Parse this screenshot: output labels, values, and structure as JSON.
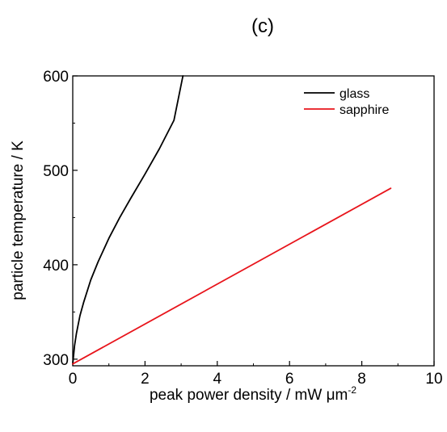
{
  "chart_data": {
    "type": "line",
    "panel_label": "(c)",
    "xlabel_text": "peak power density / mW ",
    "xlabel_unit": "μm",
    "xlabel_exponent": "-2",
    "ylabel": "particle temperature / K",
    "xlim": [
      0,
      10
    ],
    "ylim": [
      293,
      600
    ],
    "xticks": [
      0,
      2,
      4,
      6,
      8,
      10
    ],
    "yticks": [
      300,
      400,
      500,
      600
    ],
    "legend_position": "top-right",
    "grid": false,
    "series": [
      {
        "name": "glass",
        "color": "#000000",
        "x": [
          0,
          0.05,
          0.1,
          0.2,
          0.3,
          0.5,
          0.7,
          1.0,
          1.3,
          1.6,
          2.0,
          2.4,
          2.8,
          3.05
        ],
        "y": [
          295,
          314,
          327,
          346,
          360,
          384,
          403,
          428,
          450,
          470,
          496,
          523,
          553,
          600
        ]
      },
      {
        "name": "sapphire",
        "color": "#e8141b",
        "x": [
          0,
          8.8
        ],
        "y": [
          295,
          481
        ]
      }
    ]
  }
}
